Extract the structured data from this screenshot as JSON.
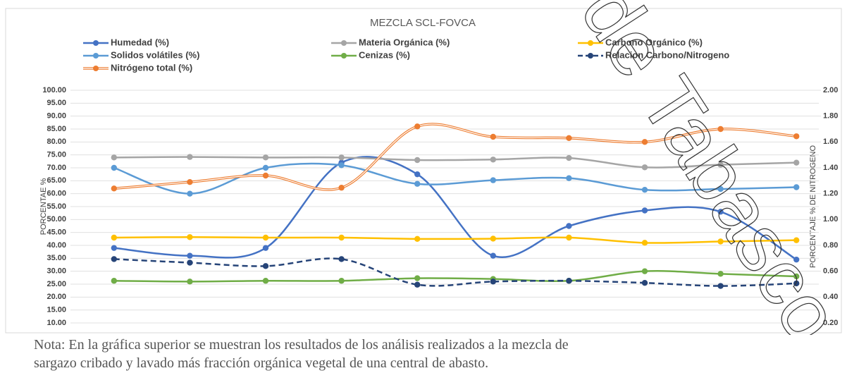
{
  "chart_data": {
    "type": "line",
    "title": "MEZCLA SCL-FOVCA",
    "y_label": "PORCENTAE %",
    "y2_label": "PORCENTAJE % DE NITROGENO",
    "categories": [
      null,
      null,
      null,
      null,
      null,
      null,
      null,
      null,
      null,
      null
    ],
    "ylim": [
      10,
      100
    ],
    "yticks": [
      {
        "value": 10,
        "label": "10.00"
      },
      {
        "value": 15,
        "label": "15.00"
      },
      {
        "value": 20,
        "label": "20.00"
      },
      {
        "value": 25,
        "label": "25.00"
      },
      {
        "value": 30,
        "label": "30.00"
      },
      {
        "value": 35,
        "label": "35.00"
      },
      {
        "value": 40,
        "label": "40.00"
      },
      {
        "value": 45,
        "label": "45.00"
      },
      {
        "value": 50,
        "label": "50.00"
      },
      {
        "value": 55,
        "label": "55.00"
      },
      {
        "value": 60,
        "label": "60.00"
      },
      {
        "value": 65,
        "label": "65.00"
      },
      {
        "value": 70,
        "label": "70.00"
      },
      {
        "value": 75,
        "label": "75.00"
      },
      {
        "value": 80,
        "label": "80.00"
      },
      {
        "value": 85,
        "label": "85.00"
      },
      {
        "value": 90,
        "label": "90.00"
      },
      {
        "value": 95,
        "label": "95.00"
      },
      {
        "value": 100,
        "label": "100.00"
      }
    ],
    "y2lim": [
      0.2,
      2.0
    ],
    "y2ticks": [
      {
        "value": 0.2,
        "label": "0.20"
      },
      {
        "value": 0.4,
        "label": "0.40"
      },
      {
        "value": 0.6,
        "label": "0.60"
      },
      {
        "value": 0.8,
        "label": "0.80"
      },
      {
        "value": 1.0,
        "label": "1.00"
      },
      {
        "value": 1.2,
        "label": "1.20"
      },
      {
        "value": 1.4,
        "label": "1.40"
      },
      {
        "value": 1.6,
        "label": "1.60"
      },
      {
        "value": 1.8,
        "label": "1.80"
      },
      {
        "value": 2.0,
        "label": "2.00"
      }
    ],
    "grid": true,
    "smooth": true,
    "series": [
      {
        "name": "Humedad (%)",
        "color": "#4472c4",
        "values": [
          39,
          36,
          39,
          72,
          67.5,
          36,
          47.5,
          53.5,
          53,
          34.5
        ]
      },
      {
        "name": "Materia Orgánica (%)",
        "color": "#a5a5a5",
        "values": [
          74,
          74.2,
          74,
          74,
          73,
          73.2,
          73.8,
          70.2,
          71.2,
          72
        ]
      },
      {
        "name": "Carbono Orgánico (%)",
        "color": "#ffc000",
        "values": [
          43,
          43.2,
          43,
          43,
          42.5,
          42.6,
          43,
          41,
          41.5,
          42
        ]
      },
      {
        "name": "Solidos volátiles (%)",
        "color": "#5b9bd5",
        "values": [
          70,
          60,
          70,
          71,
          63.8,
          65.2,
          66,
          61.5,
          61.8,
          62.5
        ]
      },
      {
        "name": "Cenizas (%)",
        "color": "#70ad47",
        "values": [
          26.3,
          26,
          26.3,
          26.3,
          27.3,
          27,
          26.3,
          30,
          29,
          28
        ]
      },
      {
        "name": "Relacion Carbono/Nitrogeno",
        "color": "#264478",
        "style": "dashed",
        "values": [
          34.7,
          33.3,
          32,
          34.7,
          24.8,
          26,
          26.3,
          25.5,
          24.3,
          25.3
        ]
      },
      {
        "name": "Nitrógeno total (%)",
        "color": "#ed7d31",
        "style": "double",
        "axis": "y2",
        "values": [
          1.24,
          1.29,
          1.34,
          1.246,
          1.72,
          1.64,
          1.63,
          1.6,
          1.7,
          1.644
        ]
      }
    ]
  },
  "note": [
    "Nota: En la gráfica superior se muestran los resultados de los análisis realizados a la mezcla de",
    "sargazo cribado y lavado más fracción orgánica vegetal de una central de abasto."
  ],
  "watermark": "de Tabasco."
}
